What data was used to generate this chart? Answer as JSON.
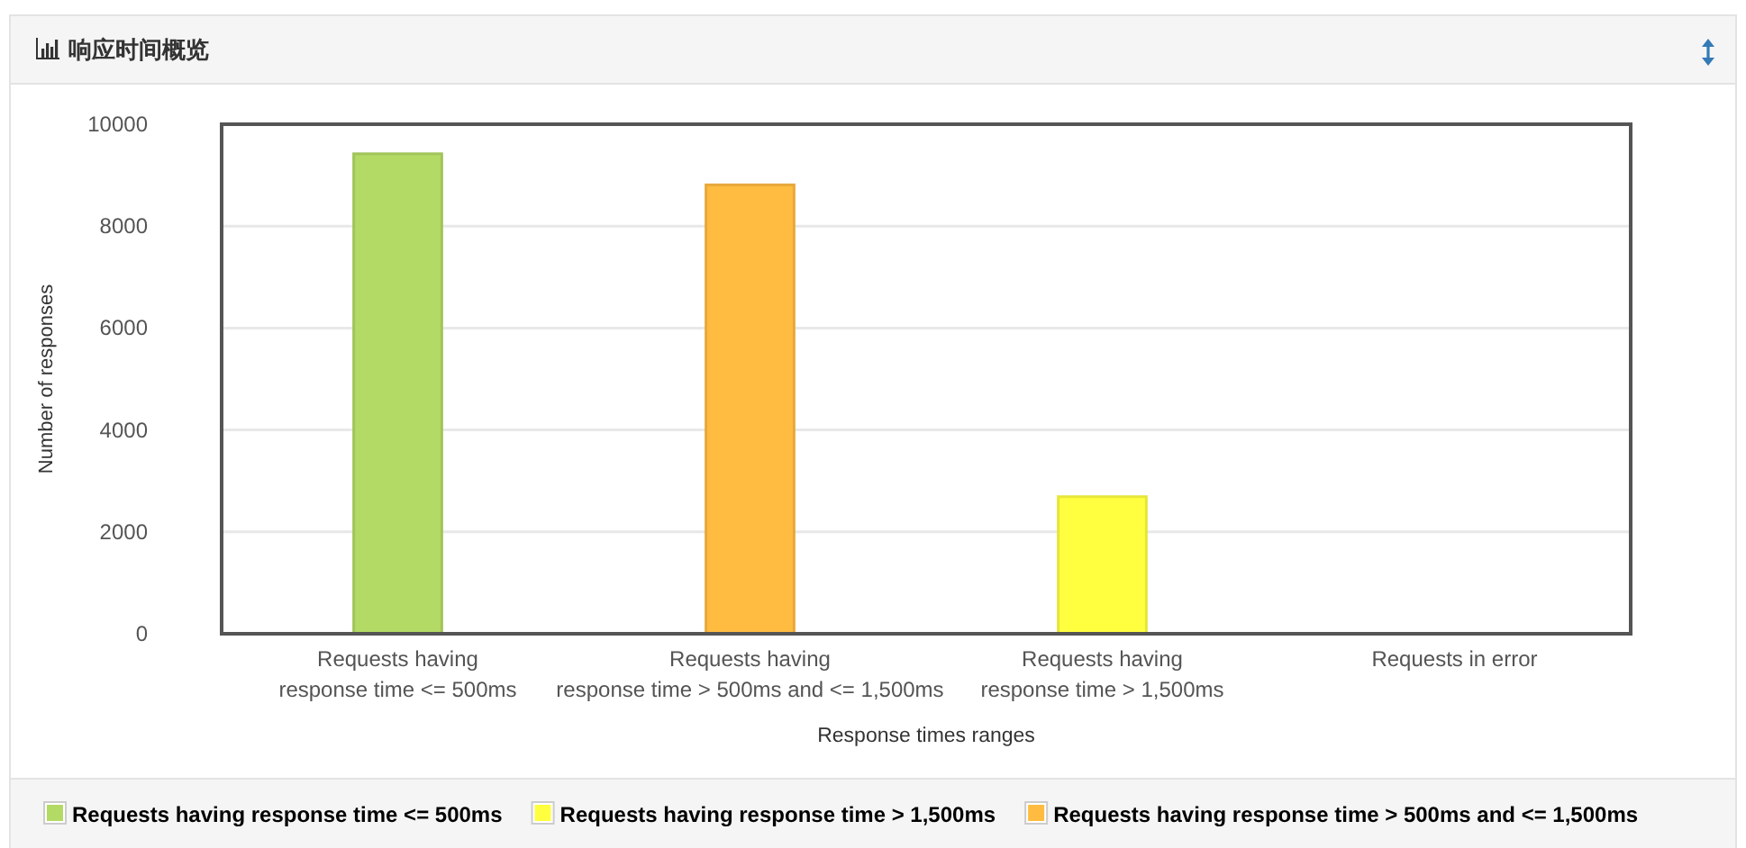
{
  "chart_data": {
    "type": "bar",
    "title": "响应时间概览",
    "xlabel": "Response times ranges",
    "ylabel": "Number of responses",
    "categories": [
      "Requests having\nresponse time <= 500ms",
      "Requests having\nresponse time > 500ms and <= 1,500ms",
      "Requests having\nresponse time > 1,500ms",
      "Requests in error"
    ],
    "series": [
      {
        "name": "Requests having response time <= 500ms",
        "color": "#b3da65",
        "values": [
          9420,
          null,
          null,
          null
        ]
      },
      {
        "name": "Requests having response time > 1,500ms",
        "color": "#ffff40",
        "values": [
          null,
          null,
          2690,
          null
        ]
      },
      {
        "name": "Requests having response time > 500ms and <= 1,500ms",
        "color": "#ffbc40",
        "values": [
          null,
          8810,
          null,
          null
        ]
      }
    ],
    "ylim": [
      0,
      10000
    ],
    "yticks": [
      0,
      2000,
      4000,
      6000,
      8000,
      10000
    ],
    "grid": "y",
    "legend": "bottom"
  }
}
